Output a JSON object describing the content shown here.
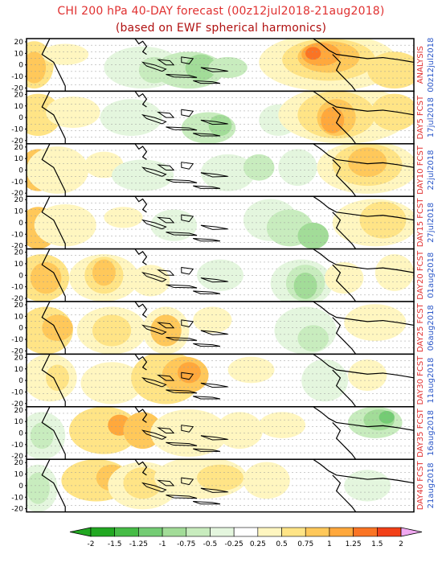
{
  "title": "CHI 200 hPa 40-DAY forecast (00z12jul2018-21aug2018)",
  "subtitle": "(based on EWF spherical harmonics)",
  "panels": [
    {
      "label1": "ANALYSIS",
      "label2": "00z12jul2018"
    },
    {
      "label1": "DAY5 FCST",
      "label2": "17jul2018"
    },
    {
      "label1": "DAY10 FCST",
      "label2": "22jul2018"
    },
    {
      "label1": "DAY15 FCST",
      "label2": "27jul2018"
    },
    {
      "label1": "DAY20 FCST",
      "label2": "01aug2018"
    },
    {
      "label1": "DAY25 FCST",
      "label2": "06aug2018"
    },
    {
      "label1": "DAY30 FCST",
      "label2": "11aug2018"
    },
    {
      "label1": "DAY35 FCST",
      "label2": "16aug2018"
    },
    {
      "label1": "DAY40 FCST",
      "label2": "21aug2018"
    }
  ],
  "y_ticks": [
    "20",
    "10",
    "0",
    "-10",
    "-20"
  ],
  "colorbar": {
    "labels": [
      "-2",
      "-1.5",
      "-1.25",
      "-1",
      "-0.75",
      "-0.5",
      "-0.25",
      "0.25",
      "0.5",
      "0.75",
      "1",
      "1.25",
      "1.5",
      "2"
    ],
    "colors": [
      "#22a822",
      "#46bc46",
      "#74cc74",
      "#a2dc98",
      "#c8ecbe",
      "#e4f6de",
      "#ffffff",
      "#fff6c0",
      "#ffe486",
      "#ffc85a",
      "#ffa83c",
      "#fa7424",
      "#f24018"
    ],
    "under_color": "#22a822",
    "over_color": "#f0a8f0"
  },
  "colors": {
    "title": "#e03030",
    "panel_label": "#e03030",
    "panel_date": "#2b57c8",
    "frame": "#000000"
  }
}
